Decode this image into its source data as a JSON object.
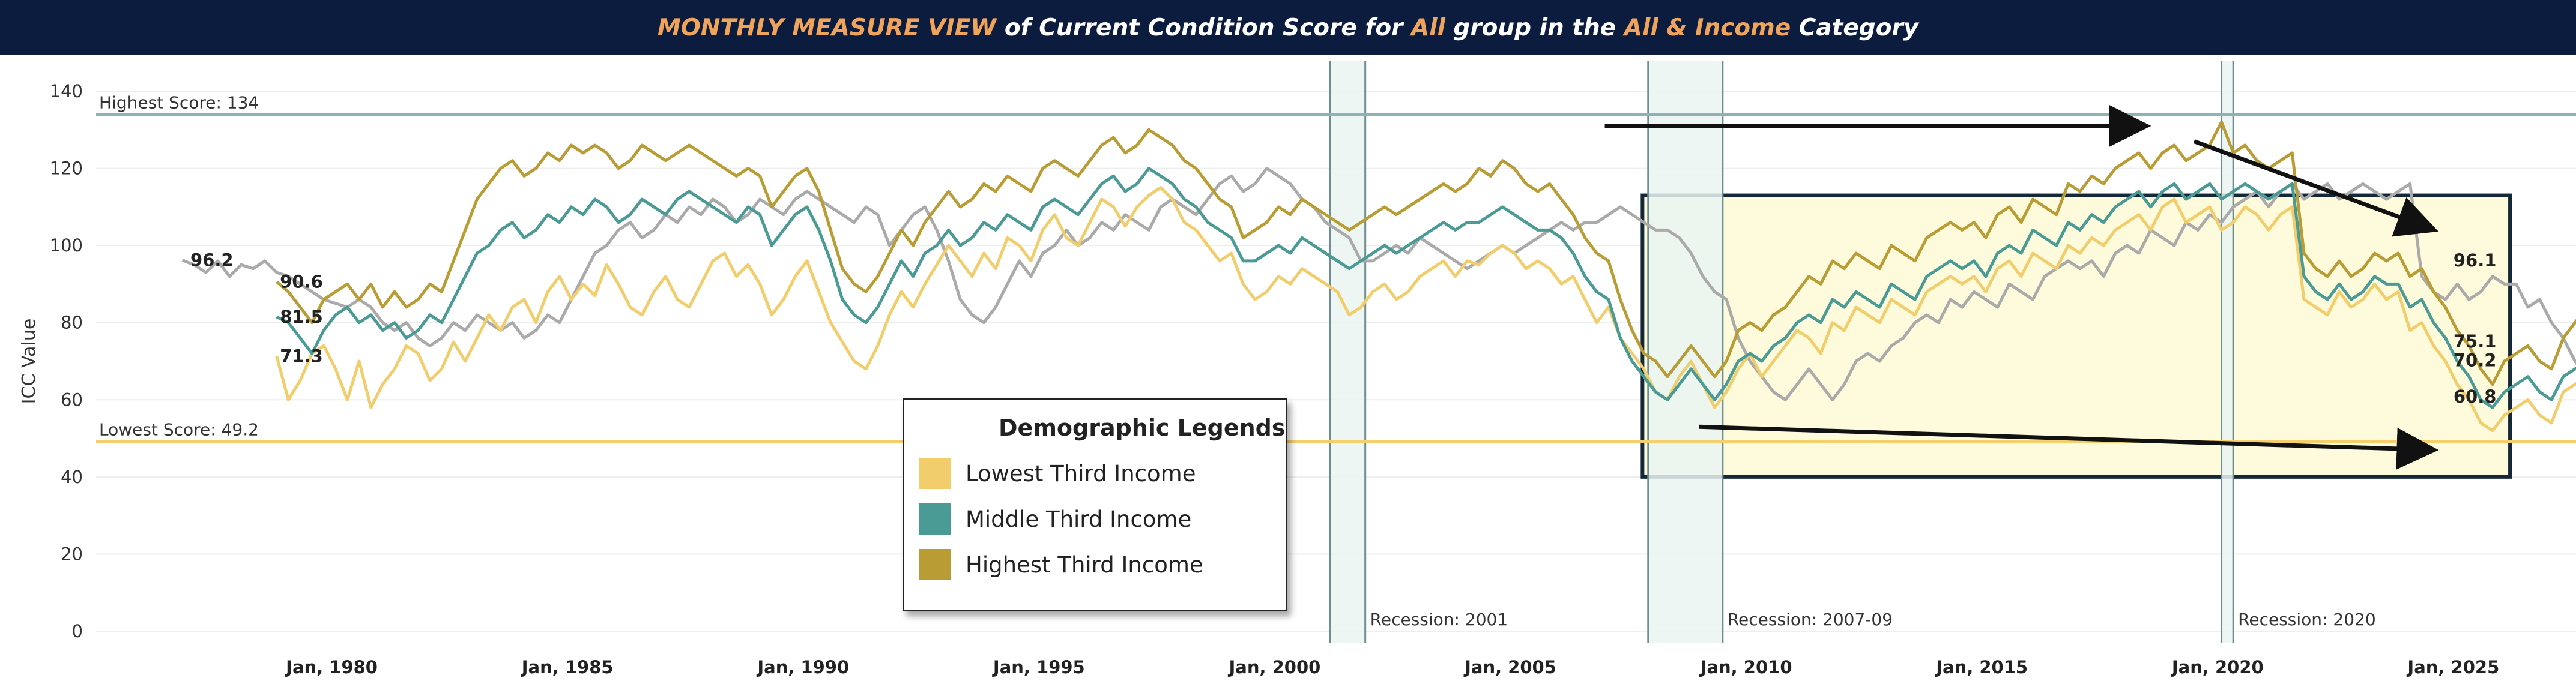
{
  "header": {
    "p1": "MONTHLY MEASURE VIEW",
    "p2": " of Current Condition Score for ",
    "p3": "All",
    "p4": " group in the ",
    "p5": "All & Income",
    "p6": " Category"
  },
  "colors": {
    "low": "#f2cd6b",
    "mid": "#4a9a96",
    "high": "#b99d34",
    "all": "#aaaaaa",
    "highest_line": "#8eb2b8",
    "lowest_line": "#f6cf6d",
    "recession_fill": "#eaf5f1",
    "highlight_fill": "#fdfbdc",
    "title_bg": "#0c1c3f",
    "accent": "#f0a35a"
  },
  "legend": {
    "title": "Demographic Legends",
    "items": [
      {
        "label": "Lowest Third Income",
        "color": "#f2cd6b"
      },
      {
        "label": "Middle Third Income",
        "color": "#4a9a96"
      },
      {
        "label": "Highest Third Income",
        "color": "#b99d34"
      }
    ]
  },
  "chart_data": {
    "type": "line",
    "ylabel": "ICC Value",
    "ylim": [
      0,
      140
    ],
    "xlim": [
      1975.0,
      2027.6
    ],
    "yticks": [
      0,
      20,
      40,
      60,
      80,
      100,
      120,
      140
    ],
    "xticks": [
      {
        "year": 1980,
        "label": "Jan, 1980"
      },
      {
        "year": 1985,
        "label": "Jan, 1985"
      },
      {
        "year": 1990,
        "label": "Jan, 1990"
      },
      {
        "year": 1995,
        "label": "Jan, 1995"
      },
      {
        "year": 2000,
        "label": "Jan, 2000"
      },
      {
        "year": 2005,
        "label": "Jan, 2005"
      },
      {
        "year": 2010,
        "label": "Jan, 2010"
      },
      {
        "year": 2015,
        "label": "Jan, 2015"
      },
      {
        "year": 2020,
        "label": "Jan, 2020"
      },
      {
        "year": 2025,
        "label": "Jan, 2025"
      }
    ],
    "reference_lines": [
      {
        "label": "Highest Score: 134",
        "value": 134
      },
      {
        "label": "Lowest Score: 49.2",
        "value": 49.2
      }
    ],
    "recessions": [
      {
        "label": "Recession: 2001",
        "start": 2001.17,
        "end": 2001.92
      },
      {
        "label": "Recession: 2007-09",
        "start": 2007.92,
        "end": 2009.5
      },
      {
        "label": "Recession: 2020",
        "start": 2020.08,
        "end": 2020.33
      }
    ],
    "highlight_box": {
      "x_start": 2007.8,
      "x_end": 2026.2,
      "y_low": 40,
      "y_high": 113
    },
    "arrows": [
      {
        "from": [
          2007.0,
          131
        ],
        "to": [
          2018.5,
          131
        ]
      },
      {
        "from": [
          2019.5,
          127
        ],
        "to": [
          2024.6,
          104
        ]
      },
      {
        "from": [
          2009.0,
          53
        ],
        "to": [
          2024.6,
          47
        ]
      }
    ],
    "series": [
      {
        "name": "Lowest Third Income",
        "key": "low",
        "x_start": 1978.83,
        "step": 0.25,
        "values": [
          71.3,
          60,
          65,
          72,
          74,
          68,
          60,
          70,
          58,
          64,
          68,
          74,
          72,
          65,
          68,
          75,
          70,
          76,
          82,
          78,
          84,
          86,
          80,
          88,
          92,
          86,
          90,
          87,
          95,
          90,
          84,
          82,
          88,
          92,
          86,
          84,
          90,
          96,
          98,
          92,
          95,
          90,
          82,
          86,
          92,
          96,
          88,
          80,
          75,
          70,
          68,
          74,
          82,
          88,
          84,
          90,
          95,
          100,
          96,
          92,
          98,
          94,
          102,
          100,
          96,
          104,
          108,
          102,
          100,
          106,
          112,
          110,
          105,
          110,
          113,
          115,
          112,
          106,
          104,
          100,
          96,
          98,
          90,
          86,
          88,
          92,
          90,
          94,
          92,
          90,
          88,
          82,
          84,
          88,
          90,
          86,
          88,
          92,
          94,
          96,
          92,
          96,
          95,
          98,
          100,
          98,
          94,
          96,
          94,
          90,
          92,
          86,
          80,
          84,
          76,
          72,
          68,
          62,
          60,
          66,
          70,
          64,
          58,
          62,
          68,
          72,
          66,
          70,
          74,
          78,
          76,
          72,
          80,
          78,
          84,
          82,
          80,
          86,
          84,
          82,
          88,
          90,
          92,
          90,
          92,
          88,
          94,
          96,
          92,
          98,
          96,
          94,
          100,
          98,
          102,
          100,
          104,
          106,
          108,
          104,
          110,
          112,
          106,
          108,
          110,
          104,
          106,
          110,
          108,
          104,
          108,
          110,
          86,
          84,
          82,
          88,
          84,
          86,
          90,
          86,
          88,
          78,
          80,
          74,
          70,
          64,
          60,
          54,
          52,
          56,
          58,
          60,
          56,
          54,
          62,
          64,
          66,
          60,
          60.8,
          64,
          60,
          58,
          52,
          55,
          58,
          60.8
        ]
      },
      {
        "name": "Middle Third Income",
        "key": "mid",
        "x_start": 1978.83,
        "step": 0.25,
        "values": [
          81.5,
          80,
          76,
          72,
          78,
          82,
          84,
          80,
          82,
          78,
          80,
          76,
          78,
          82,
          80,
          86,
          92,
          98,
          100,
          104,
          106,
          102,
          104,
          108,
          106,
          110,
          108,
          112,
          110,
          106,
          108,
          112,
          110,
          108,
          112,
          114,
          112,
          110,
          108,
          106,
          110,
          108,
          100,
          104,
          108,
          110,
          104,
          96,
          86,
          82,
          80,
          84,
          90,
          96,
          92,
          98,
          100,
          104,
          100,
          102,
          106,
          104,
          108,
          106,
          104,
          110,
          112,
          110,
          108,
          112,
          116,
          118,
          114,
          116,
          120,
          118,
          116,
          112,
          110,
          106,
          104,
          102,
          96,
          96,
          98,
          100,
          98,
          102,
          100,
          98,
          96,
          94,
          96,
          98,
          100,
          98,
          100,
          102,
          104,
          106,
          104,
          106,
          106,
          108,
          110,
          108,
          106,
          104,
          104,
          102,
          98,
          92,
          88,
          86,
          76,
          70,
          66,
          62,
          60,
          64,
          68,
          64,
          60,
          64,
          70,
          72,
          70,
          74,
          76,
          80,
          82,
          80,
          86,
          84,
          88,
          86,
          84,
          90,
          88,
          86,
          92,
          94,
          96,
          94,
          96,
          92,
          98,
          100,
          98,
          104,
          102,
          100,
          106,
          104,
          108,
          106,
          110,
          112,
          114,
          110,
          114,
          116,
          112,
          114,
          116,
          112,
          114,
          116,
          114,
          112,
          114,
          116,
          92,
          88,
          86,
          90,
          86,
          88,
          92,
          90,
          90,
          84,
          86,
          80,
          76,
          70,
          66,
          60,
          58,
          62,
          64,
          66,
          62,
          60,
          66,
          68,
          70,
          64,
          66,
          70,
          68,
          66,
          62,
          68,
          70,
          75.1
        ]
      },
      {
        "name": "Highest Third Income",
        "key": "high",
        "x_start": 1978.83,
        "step": 0.25,
        "values": [
          90.6,
          88,
          84,
          80,
          86,
          88,
          90,
          86,
          90,
          84,
          88,
          84,
          86,
          90,
          88,
          96,
          104,
          112,
          116,
          120,
          122,
          118,
          120,
          124,
          122,
          126,
          124,
          126,
          124,
          120,
          122,
          126,
          124,
          122,
          124,
          126,
          124,
          122,
          120,
          118,
          120,
          118,
          110,
          114,
          118,
          120,
          114,
          104,
          94,
          90,
          88,
          92,
          98,
          104,
          100,
          106,
          110,
          114,
          110,
          112,
          116,
          114,
          118,
          116,
          114,
          120,
          122,
          120,
          118,
          122,
          126,
          128,
          124,
          126,
          130,
          128,
          126,
          122,
          120,
          116,
          112,
          110,
          102,
          104,
          106,
          110,
          108,
          112,
          110,
          108,
          106,
          104,
          106,
          108,
          110,
          108,
          110,
          112,
          114,
          116,
          114,
          116,
          120,
          118,
          122,
          120,
          116,
          114,
          116,
          112,
          108,
          102,
          98,
          96,
          86,
          78,
          72,
          70,
          66,
          70,
          74,
          70,
          66,
          70,
          78,
          80,
          78,
          82,
          84,
          88,
          92,
          90,
          96,
          94,
          98,
          96,
          94,
          100,
          98,
          96,
          102,
          104,
          106,
          104,
          106,
          102,
          108,
          110,
          106,
          112,
          110,
          108,
          116,
          114,
          118,
          116,
          120,
          122,
          124,
          120,
          124,
          126,
          122,
          124,
          126,
          132,
          124,
          126,
          122,
          120,
          122,
          124,
          98,
          94,
          92,
          96,
          92,
          94,
          98,
          96,
          98,
          92,
          94,
          88,
          84,
          78,
          74,
          68,
          64,
          70,
          72,
          74,
          70,
          68,
          76,
          80,
          84,
          78,
          80,
          86,
          90,
          88,
          84,
          78,
          82,
          96.1
        ]
      },
      {
        "name": "All",
        "key": "all",
        "x_start": 1976.83,
        "step": 0.25,
        "values": [
          96.2,
          95,
          93,
          96,
          92,
          95,
          94,
          96,
          93,
          92,
          90,
          88,
          86,
          85,
          84,
          86,
          84,
          80,
          78,
          80,
          76,
          74,
          76,
          80,
          78,
          82,
          80,
          78,
          80,
          76,
          78,
          82,
          80,
          86,
          92,
          98,
          100,
          104,
          106,
          102,
          104,
          108,
          106,
          110,
          108,
          112,
          110,
          106,
          108,
          112,
          110,
          108,
          112,
          114,
          112,
          110,
          108,
          106,
          110,
          108,
          100,
          104,
          108,
          110,
          104,
          96,
          86,
          82,
          80,
          84,
          90,
          96,
          92,
          98,
          100,
          104,
          100,
          102,
          106,
          104,
          108,
          106,
          104,
          110,
          112,
          110,
          108,
          112,
          116,
          118,
          114,
          116,
          120,
          118,
          116,
          112,
          110,
          106,
          104,
          102,
          96,
          96,
          98,
          100,
          98,
          102,
          100,
          98,
          96,
          94,
          96,
          98,
          100,
          98,
          100,
          102,
          104,
          106,
          104,
          106,
          106,
          108,
          110,
          108,
          106,
          104,
          104,
          102,
          98,
          92,
          88,
          86,
          76,
          70,
          66,
          62,
          60,
          64,
          68,
          64,
          60,
          64,
          70,
          72,
          70,
          74,
          76,
          80,
          82,
          80,
          86,
          84,
          88,
          86,
          84,
          90,
          88,
          86,
          92,
          94,
          96,
          94,
          96,
          92,
          98,
          100,
          98,
          104,
          102,
          100,
          106,
          104,
          108,
          106,
          110,
          112,
          114,
          110,
          114,
          116,
          112,
          114,
          116,
          112,
          114,
          116,
          114,
          112,
          114,
          116,
          92,
          88,
          86,
          90,
          86,
          88,
          92,
          90,
          90,
          84,
          86,
          80,
          76,
          70,
          66,
          60,
          58,
          62,
          64,
          66,
          62,
          60,
          66,
          68,
          70,
          64,
          66,
          68,
          66,
          64,
          62,
          66,
          68,
          70.2
        ]
      }
    ],
    "annotations": [
      {
        "text": "96.2",
        "x": 1977.0,
        "y": 96.2
      },
      {
        "text": "90.6",
        "x": 1978.9,
        "y": 90.6
      },
      {
        "text": "81.5",
        "x": 1978.9,
        "y": 81.5
      },
      {
        "text": "71.3",
        "x": 1978.9,
        "y": 71.3
      },
      {
        "text": "96.1",
        "x": 2025.0,
        "y": 96.1
      },
      {
        "text": "75.1",
        "x": 2025.0,
        "y": 75.1
      },
      {
        "text": "70.2",
        "x": 2025.0,
        "y": 70.2
      },
      {
        "text": "60.8",
        "x": 2025.0,
        "y": 60.8
      }
    ]
  }
}
